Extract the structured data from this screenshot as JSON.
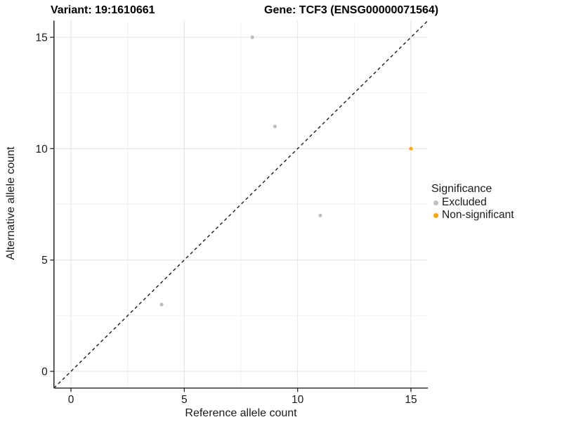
{
  "chart_data": {
    "type": "scatter",
    "title_left": "Variant: 19:1610661",
    "title_right": "Gene: TCF3 (ENSG00000071564)",
    "xlabel": "Reference allele count",
    "ylabel": "Alternative allele count",
    "xlim": [
      -0.75,
      15.75
    ],
    "ylim": [
      -0.75,
      15.75
    ],
    "x_ticks": [
      0,
      5,
      10,
      15
    ],
    "y_ticks": [
      0,
      5,
      10,
      15
    ],
    "x_minor_gridlines": [
      2.5,
      7.5,
      12.5
    ],
    "y_minor_gridlines": [
      2.5,
      7.5,
      12.5
    ],
    "grid": "major and minor gridlines on white background",
    "identity_line": {
      "equation": "y = x",
      "style": "dashed",
      "color": "#1a1a1a"
    },
    "series": [
      {
        "name": "Excluded",
        "color": "#BEBEBE",
        "points": [
          {
            "x": 8,
            "y": 15
          },
          {
            "x": 9,
            "y": 11
          },
          {
            "x": 11,
            "y": 7
          },
          {
            "x": 4,
            "y": 3
          }
        ]
      },
      {
        "name": "Non-significant",
        "color": "#FFA500",
        "points": [
          {
            "x": 15,
            "y": 10
          }
        ]
      }
    ],
    "legend": {
      "title": "Significance",
      "position": "right",
      "items": [
        {
          "label": "Excluded",
          "color": "#BEBEBE"
        },
        {
          "label": "Non-significant",
          "color": "#FFA500"
        }
      ]
    }
  },
  "colors": {
    "background": "#FFFFFF",
    "grid_major": "#E3E3E3",
    "grid_minor": "#F1F1F1",
    "axis_line": "#333333",
    "tick_mark": "#333333",
    "text": "#1A1A1A"
  }
}
